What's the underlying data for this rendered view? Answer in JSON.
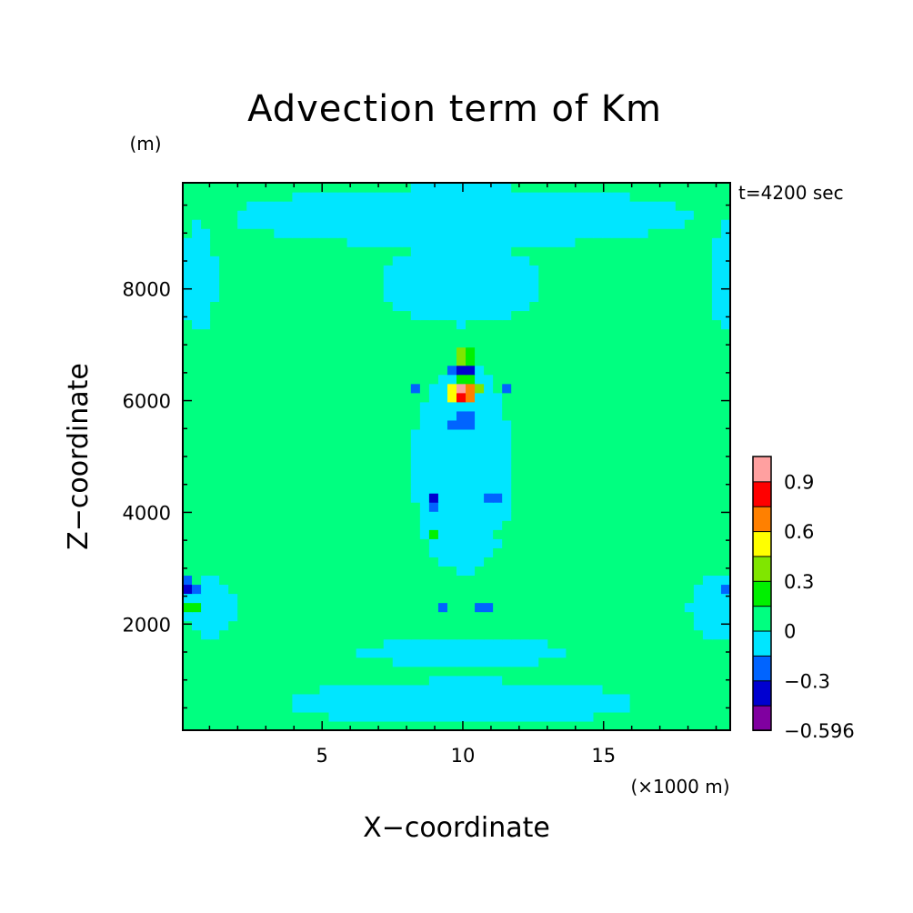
{
  "chart_data": {
    "type": "heatmap",
    "title": "Advection term of Km",
    "xlabel": "X−coordinate",
    "ylabel": "Z−coordinate",
    "x_unit": "(×1000 m)",
    "y_unit": "(m)",
    "time_label": "t=4200 sec",
    "xlim": [
      0.05,
      19.5
    ],
    "ylim": [
      100,
      9900
    ],
    "x_ticks": [
      5,
      10,
      15
    ],
    "x_tick_labels": [
      "5",
      "10",
      "15"
    ],
    "y_ticks": [
      2000,
      4000,
      6000,
      8000
    ],
    "y_tick_labels": [
      "2000",
      "4000",
      "6000",
      "8000"
    ],
    "colorbar": {
      "levels": [
        -0.596,
        -0.45,
        -0.3,
        -0.15,
        0,
        0.15,
        0.3,
        0.45,
        0.6,
        0.75,
        0.9,
        1.05
      ],
      "colors": [
        "#8000a0",
        "#0000d0",
        "#0064ff",
        "#00e6ff",
        "#00ff80",
        "#00f000",
        "#80e600",
        "#ffff00",
        "#ff8000",
        "#ff0000",
        "#ffa0a0"
      ],
      "tick_values": [
        -0.596,
        -0.3,
        0,
        0.3,
        0.6,
        0.9
      ],
      "tick_labels": [
        "−0.596",
        "−0.3",
        "0",
        "0.3",
        "0.6",
        "0.9"
      ]
    },
    "background_value": 0.05,
    "features": [
      {
        "x": 10.0,
        "z": 6150,
        "rx": 0.55,
        "rz": 160,
        "value": 0.95
      },
      {
        "x": 10.0,
        "z": 6200,
        "rx": 0.75,
        "rz": 230,
        "value": 0.5
      },
      {
        "x": 10.0,
        "z": 6230,
        "rx": 1.2,
        "rz": 320,
        "value": -0.05
      },
      {
        "x": 10.0,
        "z": 6520,
        "rx": 0.55,
        "rz": 100,
        "value": -0.4
      },
      {
        "x": 10.0,
        "z": 6800,
        "rx": 0.5,
        "rz": 130,
        "value": 0.4
      },
      {
        "x": 10.0,
        "z": 6920,
        "rx": 0.3,
        "rz": 60,
        "value": -0.4
      },
      {
        "x": 10.0,
        "z": 7120,
        "rx": 0.3,
        "rz": 80,
        "value": 0.25
      },
      {
        "x": 10.0,
        "z": 5620,
        "rx": 0.55,
        "rz": 170,
        "value": -0.3
      },
      {
        "x": 8.9,
        "z": 4250,
        "rx": 0.22,
        "rz": 200,
        "value": -0.35
      },
      {
        "x": 11.1,
        "z": 4250,
        "rx": 0.22,
        "rz": 200,
        "value": -0.35
      },
      {
        "x": 8.9,
        "z": 3650,
        "rx": 0.2,
        "rz": 90,
        "value": 0.2
      },
      {
        "x": 11.1,
        "z": 3650,
        "rx": 0.2,
        "rz": 90,
        "value": 0.2
      },
      {
        "x": 9.25,
        "z": 2280,
        "rx": 0.2,
        "rz": 80,
        "value": -0.3
      },
      {
        "x": 10.75,
        "z": 2280,
        "rx": 0.2,
        "rz": 80,
        "value": -0.3
      },
      {
        "x": 8.4,
        "z": 6200,
        "rx": 0.15,
        "rz": 70,
        "value": -0.3
      },
      {
        "x": 11.6,
        "z": 6200,
        "rx": 0.15,
        "rz": 70,
        "value": -0.3
      },
      {
        "x": 10.0,
        "z": 7450,
        "rx": 0.2,
        "rz": 70,
        "value": -0.3
      },
      {
        "x": 0.25,
        "z": 2700,
        "rx": 0.45,
        "rz": 110,
        "value": -0.55
      },
      {
        "x": 0.4,
        "z": 2300,
        "rx": 0.35,
        "rz": 110,
        "value": 0.22
      },
      {
        "x": 19.5,
        "z": 2700,
        "rx": 0.3,
        "rz": 90,
        "value": -0.4
      },
      {
        "x": 0.1,
        "z": 8420,
        "rx": 0.25,
        "rz": 60,
        "value": -0.35
      },
      {
        "x": 1.3,
        "z": 9550,
        "rx": 0.2,
        "rz": 60,
        "value": 0.2
      },
      {
        "x": 18.9,
        "z": 9550,
        "rx": 0.2,
        "rz": 60,
        "value": 0.2
      },
      {
        "x": 0.1,
        "z": 9050,
        "rx": 0.2,
        "rz": 60,
        "value": 0.3
      }
    ],
    "regions": [
      {
        "x": 10.0,
        "z": 600,
        "rx": 7.5,
        "rz": 500,
        "value": -0.05
      },
      {
        "x": 10.0,
        "z": 1500,
        "rx": 4.5,
        "rz": 300,
        "value": -0.05
      },
      {
        "x": 10.0,
        "z": 9300,
        "rx": 10.0,
        "rz": 650,
        "value": -0.05
      },
      {
        "x": 10.0,
        "z": 8100,
        "rx": 3.5,
        "rz": 900,
        "value": -0.05
      },
      {
        "x": 10.0,
        "z": 4800,
        "rx": 2.2,
        "rz": 2300,
        "value": -0.05
      },
      {
        "x": 1.0,
        "z": 2300,
        "rx": 1.2,
        "rz": 650,
        "value": -0.05
      },
      {
        "x": 19.0,
        "z": 2300,
        "rx": 1.2,
        "rz": 650,
        "value": -0.05
      },
      {
        "x": 0.6,
        "z": 8200,
        "rx": 0.8,
        "rz": 1200,
        "value": -0.05
      },
      {
        "x": 19.4,
        "z": 8200,
        "rx": 0.8,
        "rz": 1200,
        "value": -0.05
      }
    ]
  }
}
